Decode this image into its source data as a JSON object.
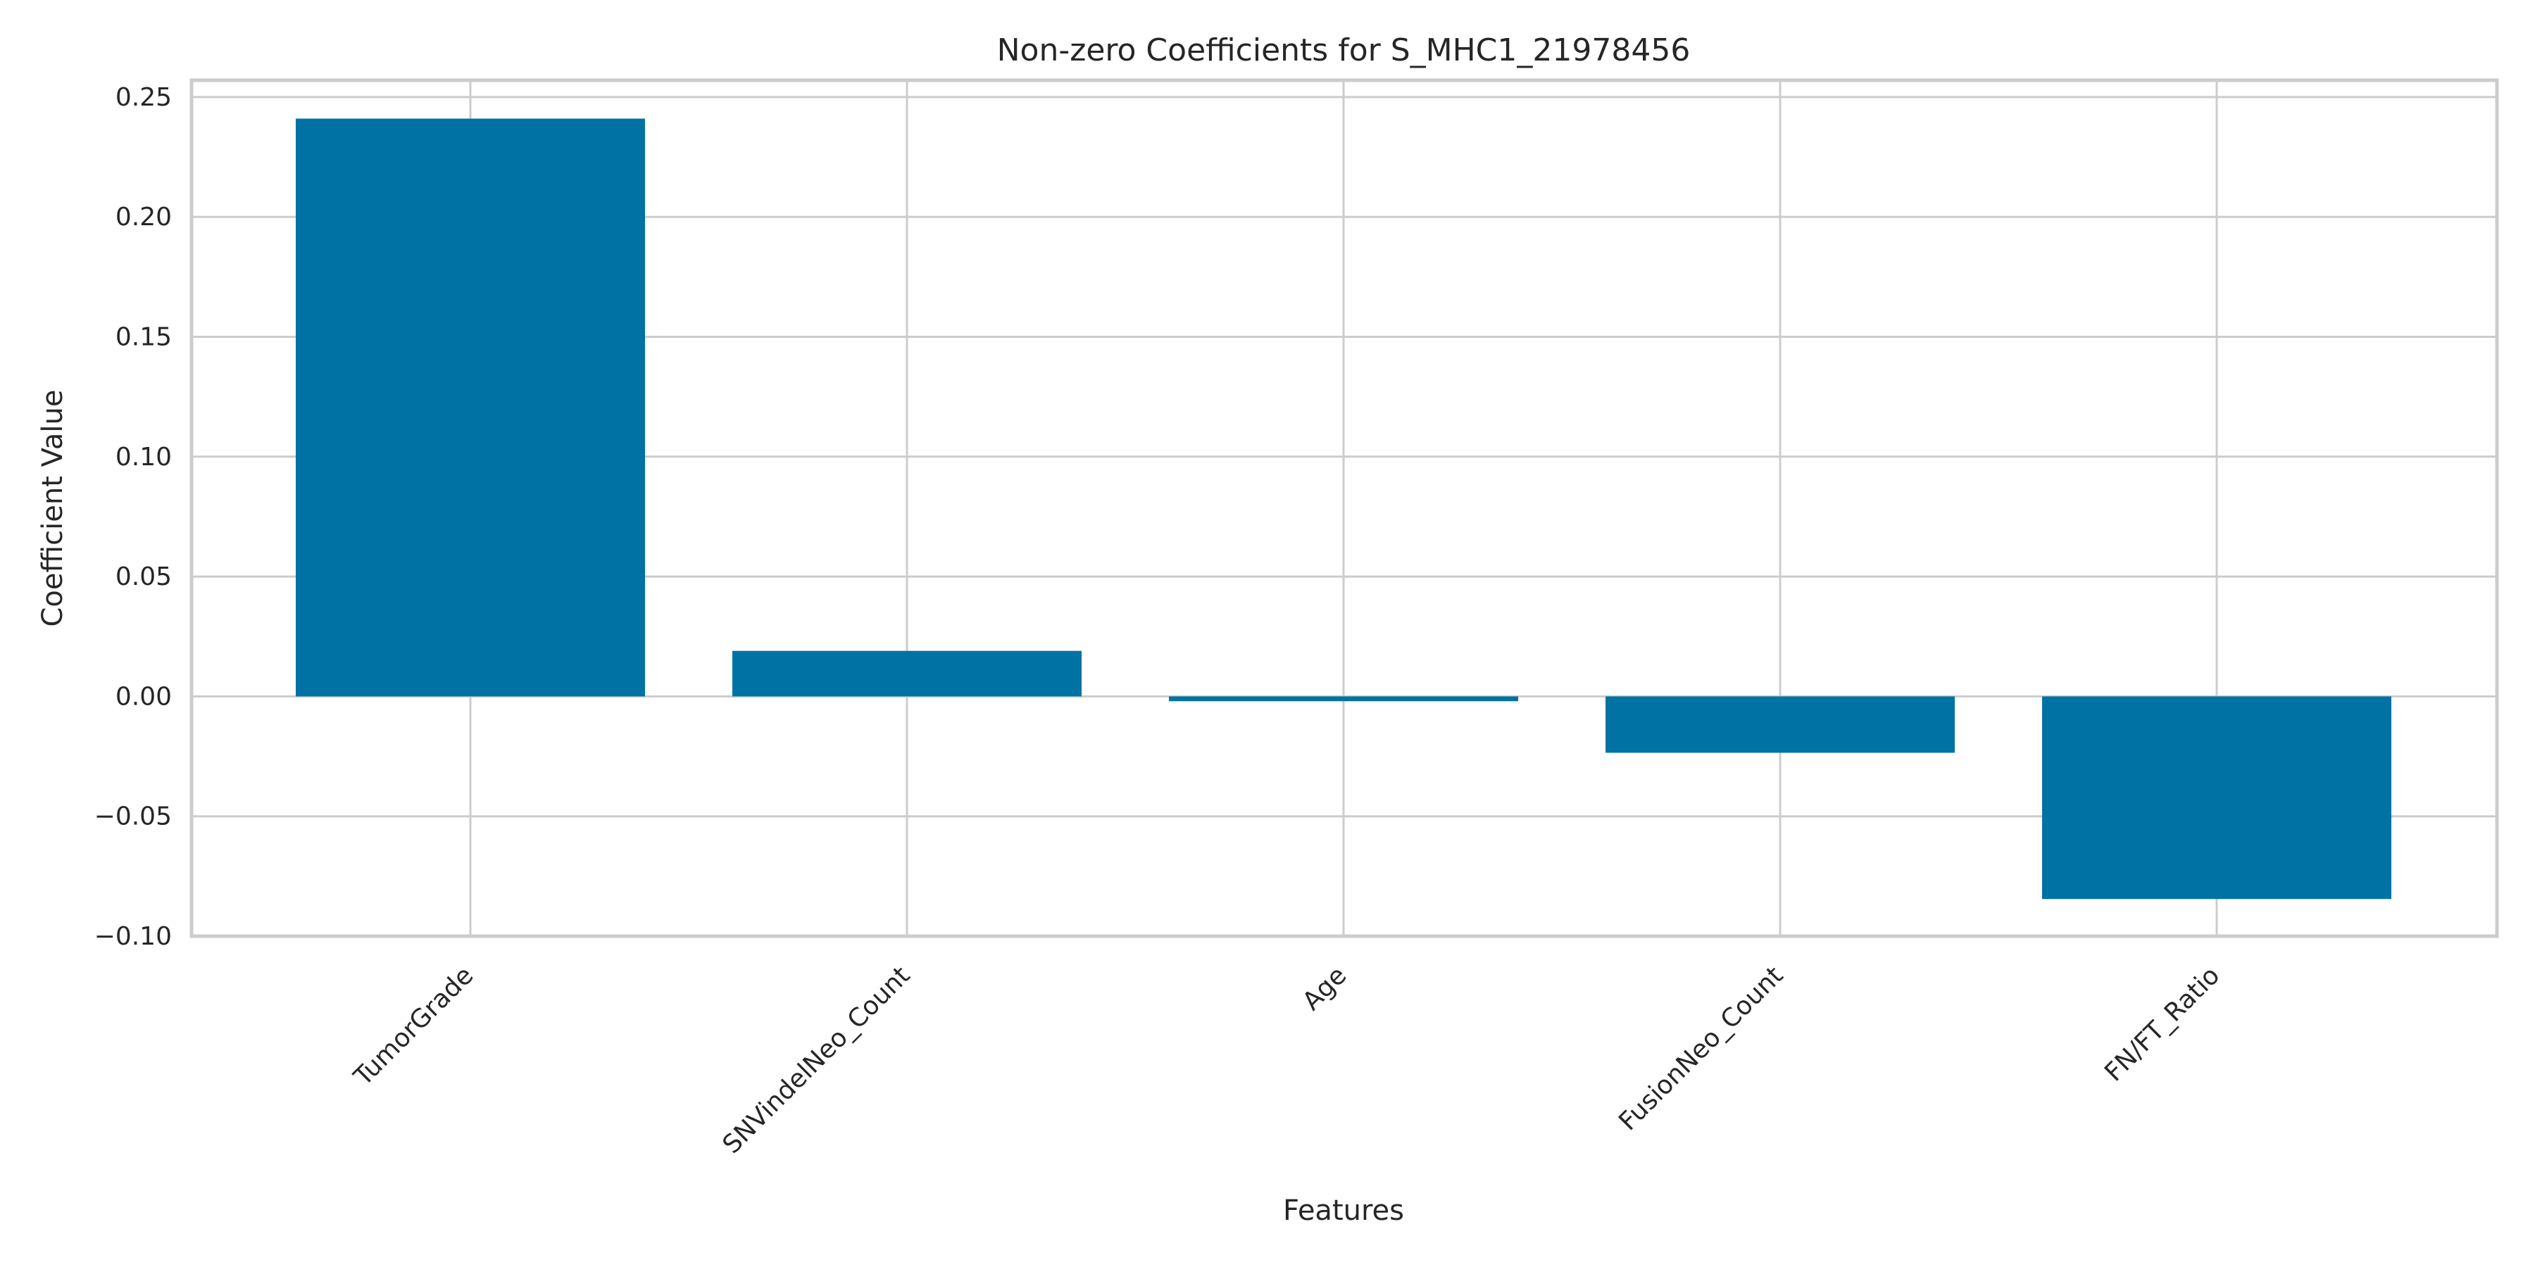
{
  "chart_data": {
    "type": "bar",
    "title": "Non-zero Coefficients for S_MHC1_21978456",
    "xlabel": "Features",
    "ylabel": "Coefficient Value",
    "categories": [
      "TumorGrade",
      "SNVindelNeo_Count",
      "Age",
      "FusionNeo_Count",
      "FN/FT_Ratio"
    ],
    "values": [
      0.241,
      0.019,
      -0.002,
      -0.0235,
      -0.0845
    ],
    "ylim": [
      -0.1,
      0.257
    ],
    "yticks": [
      -0.1,
      -0.05,
      0.0,
      0.05,
      0.1,
      0.15,
      0.2,
      0.25
    ],
    "ytick_labels": [
      "−0.10",
      "−0.05",
      "0.00",
      "0.05",
      "0.10",
      "0.15",
      "0.20",
      "0.25"
    ],
    "grid": true,
    "bar_color": "#0072a4",
    "grid_color": "#cccccc"
  }
}
